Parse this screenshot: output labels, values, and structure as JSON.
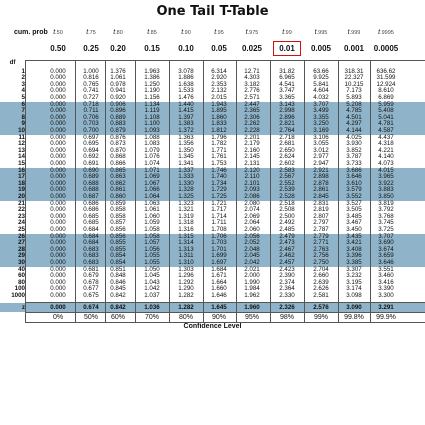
{
  "title": "One Tail T-Table",
  "cum_label": "cum. prob",
  "df_label": "df",
  "z_label": "z",
  "confidence_label": "Confidence Level",
  "highlight_color": "#d11111",
  "shade_color": "#8fb3c8",
  "t_headers": [
    {
      "t": "t",
      "sub": ".50"
    },
    {
      "t": "t",
      "sub": ".75"
    },
    {
      "t": "t",
      "sub": ".80"
    },
    {
      "t": "t",
      "sub": ".85"
    },
    {
      "t": "t",
      "sub": ".90"
    },
    {
      "t": "t",
      "sub": ".95"
    },
    {
      "t": "t",
      "sub": ".975"
    },
    {
      "t": "t",
      "sub": ".99"
    },
    {
      "t": "t",
      "sub": ".995"
    },
    {
      "t": "t",
      "sub": ".999"
    },
    {
      "t": "t",
      "sub": ".9995"
    }
  ],
  "alpha_headers": [
    "0.50",
    "0.25",
    "0.20",
    "0.15",
    "0.10",
    "0.05",
    "0.025",
    "0.01",
    "0.005",
    "0.001",
    "0.0005"
  ],
  "highlighted_column": 7,
  "rows": [
    {
      "df": "1",
      "v": [
        "0.000",
        "1.000",
        "1.376",
        "1.963",
        "3.078",
        "6.314",
        "12.71",
        "31.82",
        "63.66",
        "318.31",
        "636.62"
      ]
    },
    {
      "df": "2",
      "v": [
        "0.000",
        "0.816",
        "1.061",
        "1.386",
        "1.886",
        "2.920",
        "4.303",
        "6.965",
        "9.925",
        "22.327",
        "31.599"
      ]
    },
    {
      "df": "3",
      "v": [
        "0.000",
        "0.765",
        "0.978",
        "1.250",
        "1.638",
        "2.353",
        "3.182",
        "4.541",
        "5.841",
        "10.215",
        "12.924"
      ]
    },
    {
      "df": "4",
      "v": [
        "0.000",
        "0.741",
        "0.941",
        "1.190",
        "1.533",
        "2.132",
        "2.776",
        "3.747",
        "4.604",
        "7.173",
        "8.610"
      ]
    },
    {
      "df": "5",
      "v": [
        "0.000",
        "0.727",
        "0.920",
        "1.156",
        "1.476",
        "2.015",
        "2.571",
        "3.365",
        "4.032",
        "5.893",
        "6.869"
      ]
    },
    {
      "df": "6",
      "v": [
        "0.000",
        "0.718",
        "0.906",
        "1.134",
        "1.440",
        "1.943",
        "2.447",
        "3.143",
        "3.707",
        "5.208",
        "5.959"
      ]
    },
    {
      "df": "7",
      "v": [
        "0.000",
        "0.711",
        "0.896",
        "1.119",
        "1.415",
        "1.895",
        "2.365",
        "2.998",
        "3.499",
        "4.785",
        "5.408"
      ]
    },
    {
      "df": "8",
      "v": [
        "0.000",
        "0.706",
        "0.889",
        "1.108",
        "1.397",
        "1.860",
        "2.306",
        "2.896",
        "3.355",
        "4.501",
        "5.041"
      ]
    },
    {
      "df": "9",
      "v": [
        "0.000",
        "0.703",
        "0.883",
        "1.100",
        "1.383",
        "1.833",
        "2.262",
        "2.821",
        "3.250",
        "4.297",
        "4.781"
      ]
    },
    {
      "df": "10",
      "v": [
        "0.000",
        "0.700",
        "0.879",
        "1.093",
        "1.372",
        "1.812",
        "2.228",
        "2.764",
        "3.169",
        "4.144",
        "4.587"
      ]
    },
    {
      "df": "11",
      "v": [
        "0.000",
        "0.697",
        "0.876",
        "1.088",
        "1.363",
        "1.796",
        "2.201",
        "2.718",
        "3.106",
        "4.025",
        "4.437"
      ]
    },
    {
      "df": "12",
      "v": [
        "0.000",
        "0.695",
        "0.873",
        "1.083",
        "1.356",
        "1.782",
        "2.179",
        "2.681",
        "3.055",
        "3.930",
        "4.318"
      ]
    },
    {
      "df": "13",
      "v": [
        "0.000",
        "0.694",
        "0.870",
        "1.079",
        "1.350",
        "1.771",
        "2.160",
        "2.650",
        "3.012",
        "3.852",
        "4.221"
      ]
    },
    {
      "df": "14",
      "v": [
        "0.000",
        "0.692",
        "0.868",
        "1.076",
        "1.345",
        "1.761",
        "2.145",
        "2.624",
        "2.977",
        "3.787",
        "4.140"
      ]
    },
    {
      "df": "15",
      "v": [
        "0.000",
        "0.691",
        "0.866",
        "1.074",
        "1.341",
        "1.753",
        "2.131",
        "2.602",
        "2.947",
        "3.733",
        "4.073"
      ]
    },
    {
      "df": "16",
      "v": [
        "0.000",
        "0.690",
        "0.865",
        "1.071",
        "1.337",
        "1.746",
        "2.120",
        "2.583",
        "2.921",
        "3.686",
        "4.015"
      ]
    },
    {
      "df": "17",
      "v": [
        "0.000",
        "0.689",
        "0.863",
        "1.069",
        "1.333",
        "1.740",
        "2.110",
        "2.567",
        "2.898",
        "3.646",
        "3.965"
      ]
    },
    {
      "df": "18",
      "v": [
        "0.000",
        "0.688",
        "0.862",
        "1.067",
        "1.330",
        "1.734",
        "2.101",
        "2.552",
        "2.878",
        "3.610",
        "3.922"
      ]
    },
    {
      "df": "19",
      "v": [
        "0.000",
        "0.688",
        "0.861",
        "1.066",
        "1.328",
        "1.729",
        "2.093",
        "2.539",
        "2.861",
        "3.579",
        "3.883"
      ]
    },
    {
      "df": "20",
      "v": [
        "0.000",
        "0.687",
        "0.860",
        "1.064",
        "1.325",
        "1.725",
        "2.086",
        "2.528",
        "2.845",
        "3.552",
        "3.850"
      ]
    },
    {
      "df": "21",
      "v": [
        "0.000",
        "0.686",
        "0.859",
        "1.063",
        "1.323",
        "1.721",
        "2.080",
        "2.518",
        "2.831",
        "3.527",
        "3.819"
      ]
    },
    {
      "df": "22",
      "v": [
        "0.000",
        "0.686",
        "0.858",
        "1.061",
        "1.321",
        "1.717",
        "2.074",
        "2.508",
        "2.819",
        "3.505",
        "3.792"
      ]
    },
    {
      "df": "23",
      "v": [
        "0.000",
        "0.685",
        "0.858",
        "1.060",
        "1.319",
        "1.714",
        "2.069",
        "2.500",
        "2.807",
        "3.485",
        "3.768"
      ]
    },
    {
      "df": "24",
      "v": [
        "0.000",
        "0.685",
        "0.857",
        "1.059",
        "1.318",
        "1.711",
        "2.064",
        "2.492",
        "2.797",
        "3.467",
        "3.745"
      ]
    },
    {
      "df": "25",
      "v": [
        "0.000",
        "0.684",
        "0.856",
        "1.058",
        "1.316",
        "1.708",
        "2.060",
        "2.485",
        "2.787",
        "3.450",
        "3.725"
      ]
    },
    {
      "df": "26",
      "v": [
        "0.000",
        "0.684",
        "0.856",
        "1.058",
        "1.315",
        "1.706",
        "2.056",
        "2.479",
        "2.779",
        "3.435",
        "3.707"
      ]
    },
    {
      "df": "27",
      "v": [
        "0.000",
        "0.684",
        "0.855",
        "1.057",
        "1.314",
        "1.703",
        "2.052",
        "2.473",
        "2.771",
        "3.421",
        "3.690"
      ]
    },
    {
      "df": "28",
      "v": [
        "0.000",
        "0.683",
        "0.855",
        "1.056",
        "1.313",
        "1.701",
        "2.048",
        "2.467",
        "2.763",
        "3.408",
        "3.674"
      ]
    },
    {
      "df": "29",
      "v": [
        "0.000",
        "0.683",
        "0.854",
        "1.055",
        "1.311",
        "1.699",
        "2.045",
        "2.462",
        "2.756",
        "3.396",
        "3.659"
      ]
    },
    {
      "df": "30",
      "v": [
        "0.000",
        "0.683",
        "0.854",
        "1.055",
        "1.310",
        "1.697",
        "2.042",
        "2.457",
        "2.750",
        "3.385",
        "3.646"
      ]
    },
    {
      "df": "40",
      "v": [
        "0.000",
        "0.681",
        "0.851",
        "1.050",
        "1.303",
        "1.684",
        "2.021",
        "2.423",
        "2.704",
        "3.307",
        "3.551"
      ]
    },
    {
      "df": "60",
      "v": [
        "0.000",
        "0.679",
        "0.848",
        "1.045",
        "1.296",
        "1.671",
        "2.000",
        "2.390",
        "2.660",
        "3.232",
        "3.460"
      ]
    },
    {
      "df": "80",
      "v": [
        "0.000",
        "0.678",
        "0.846",
        "1.043",
        "1.292",
        "1.664",
        "1.990",
        "2.374",
        "2.639",
        "3.195",
        "3.416"
      ]
    },
    {
      "df": "100",
      "v": [
        "0.000",
        "0.677",
        "0.845",
        "1.042",
        "1.290",
        "1.660",
        "1.984",
        "2.364",
        "2.626",
        "3.174",
        "3.390"
      ]
    },
    {
      "df": "1000",
      "v": [
        "0.000",
        "0.675",
        "0.842",
        "1.037",
        "1.282",
        "1.646",
        "1.962",
        "2.330",
        "2.581",
        "3.098",
        "3.300"
      ]
    }
  ],
  "z_row": [
    "0.000",
    "0.674",
    "0.842",
    "1.036",
    "1.282",
    "1.645",
    "1.960",
    "2.326",
    "2.576",
    "3.090",
    "3.291"
  ],
  "confidence": [
    "0%",
    "50%",
    "60%",
    "70%",
    "80%",
    "90%",
    "95%",
    "98%",
    "99%",
    "99.8%",
    "99.9%"
  ]
}
